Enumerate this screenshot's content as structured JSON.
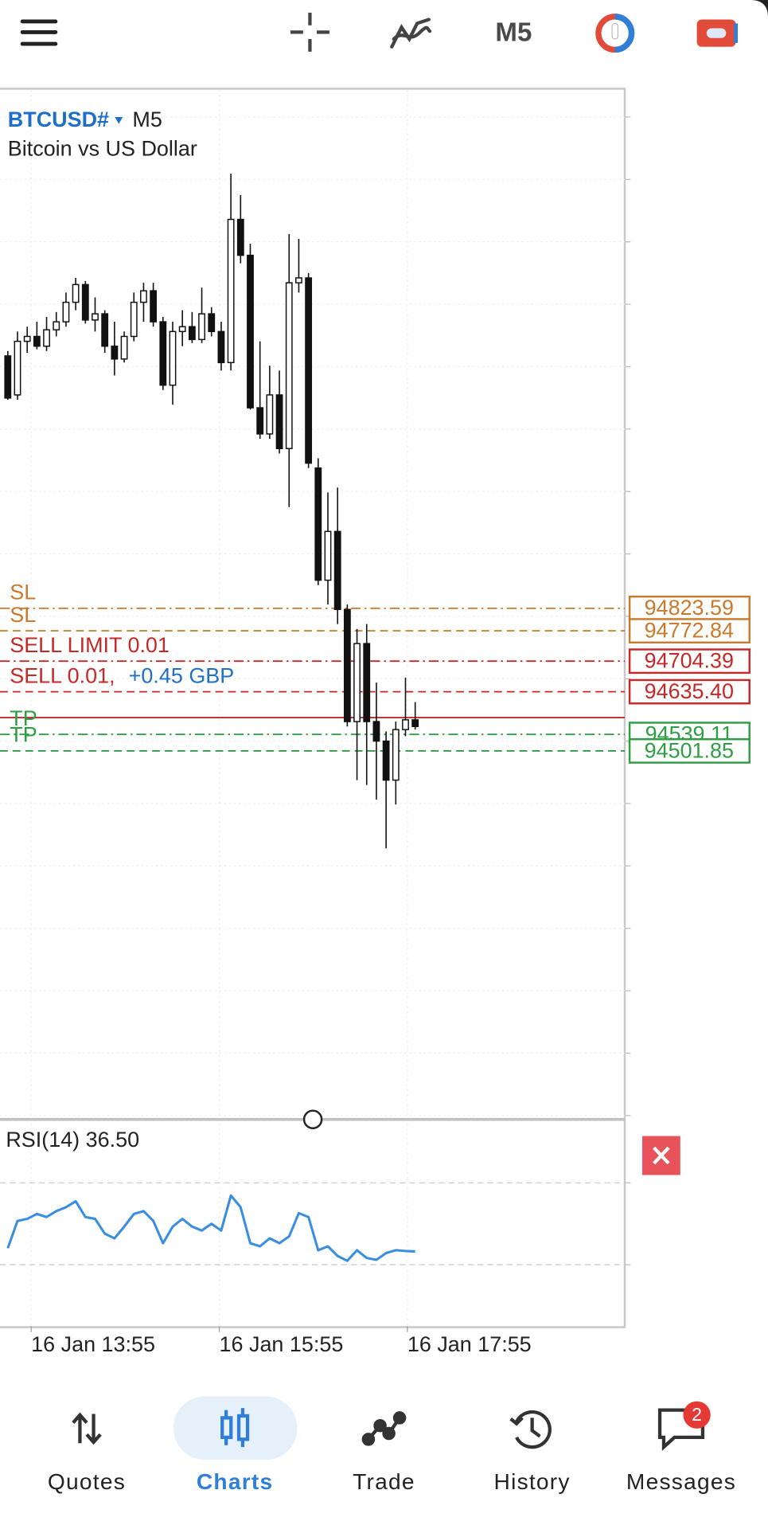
{
  "toolbar": {
    "timeframe": "M5"
  },
  "chart": {
    "type": "candlestick",
    "symbol": "BTCUSD#",
    "timeframe": "M5",
    "description": "Bitcoin vs US Dollar",
    "ylim": [
      93672.6,
      95993.6
    ],
    "candles": {
      "open": [
        95393,
        95305,
        95426,
        95437,
        95415,
        95452,
        95470,
        95514,
        95554,
        95474,
        95488,
        95415,
        95386,
        95437,
        95514,
        95540,
        95470,
        95327,
        95448,
        95459,
        95430,
        95488,
        95448,
        95378,
        95701,
        95620,
        95276,
        95217,
        95305,
        95184,
        95558,
        95569,
        95140,
        94887,
        94997,
        94821,
        94568,
        94744,
        94568,
        94524,
        94436,
        94550,
        94572
      ],
      "high": [
        95404,
        95448,
        95459,
        95470,
        95481,
        95492,
        95536,
        95569,
        95562,
        95525,
        95496,
        95470,
        95448,
        95536,
        95558,
        95558,
        95481,
        95470,
        95496,
        95492,
        95547,
        95503,
        95470,
        95804,
        95756,
        95646,
        95426,
        95371,
        95360,
        95668,
        95657,
        95580,
        95162,
        95085,
        95096,
        94832,
        94777,
        94788,
        94656,
        94546,
        94568,
        94667,
        94612
      ],
      "low": [
        95294,
        95294,
        95400,
        95408,
        95404,
        95437,
        95459,
        95496,
        95466,
        95448,
        95400,
        95349,
        95378,
        95426,
        95470,
        95459,
        95316,
        95283,
        95415,
        95422,
        95422,
        95437,
        95360,
        95360,
        95602,
        95272,
        95206,
        95206,
        95173,
        95052,
        95536,
        95140,
        94876,
        94832,
        94788,
        94557,
        94436,
        94425,
        94392,
        94282,
        94381,
        94535,
        94550
      ],
      "close": [
        95298,
        95426,
        95437,
        95415,
        95452,
        95470,
        95514,
        95554,
        95474,
        95488,
        95415,
        95386,
        95437,
        95514,
        95540,
        95470,
        95327,
        95448,
        95459,
        95430,
        95488,
        95448,
        95378,
        95701,
        95620,
        95276,
        95217,
        95305,
        95184,
        95558,
        95569,
        95151,
        94887,
        94997,
        94821,
        94568,
        94744,
        94568,
        94524,
        94436,
        94550,
        94572,
        94557
      ]
    },
    "bid": 94577,
    "bid_color": "#b71c1c",
    "levels": [
      {
        "label": "SL",
        "price": 94823.59,
        "color": "#c97a2c",
        "dash": "dashdot"
      },
      {
        "label": "SL",
        "price": 94772.84,
        "color": "#c97a2c",
        "dash": "dash"
      },
      {
        "label": "SELL LIMIT 0.01",
        "price": 94704.39,
        "color": "#c62828",
        "dash": "dashdot"
      },
      {
        "label": "SELL 0.01,",
        "profit": "+0.45 GBP",
        "profit_color": "#1e6fc8",
        "price": {
          "value": 94635.4,
          "label": "94635.40"
        },
        "color": "#c62828",
        "dash": "dash"
      },
      {
        "label": "TP",
        "price": 94539.11,
        "color": "#2e9e44",
        "dash": "dashdot"
      },
      {
        "label": "TP",
        "price": 94501.85,
        "color": "#2e9e44",
        "dash": "dash"
      }
    ],
    "x_labels": [
      "16 Jan 13:55",
      "16 Jan 15:55",
      "16 Jan 17:55"
    ]
  },
  "rsi": {
    "type": "line",
    "label": "RSI(14) 36.50",
    "ylim": [
      0,
      100
    ],
    "levels": [
      70,
      30
    ],
    "color": "#3a8ee0",
    "values": [
      38.1,
      51.4,
      52.4,
      54.8,
      53.3,
      56.2,
      58.1,
      61.0,
      53.3,
      52.4,
      45.2,
      42.9,
      48.6,
      54.8,
      56.2,
      51.4,
      40.5,
      48.6,
      52.4,
      48.6,
      46.7,
      50.0,
      46.7,
      63.8,
      58.1,
      40.5,
      39.0,
      42.9,
      40.5,
      43.8,
      55.2,
      53.3,
      37.1,
      39.0,
      34.3,
      31.9,
      37.1,
      33.3,
      32.4,
      35.7,
      37.1,
      36.7,
      36.5
    ]
  },
  "nav": {
    "items": [
      "Quotes",
      "Charts",
      "Trade",
      "History",
      "Messages"
    ],
    "active": "Charts",
    "badge": 2
  }
}
